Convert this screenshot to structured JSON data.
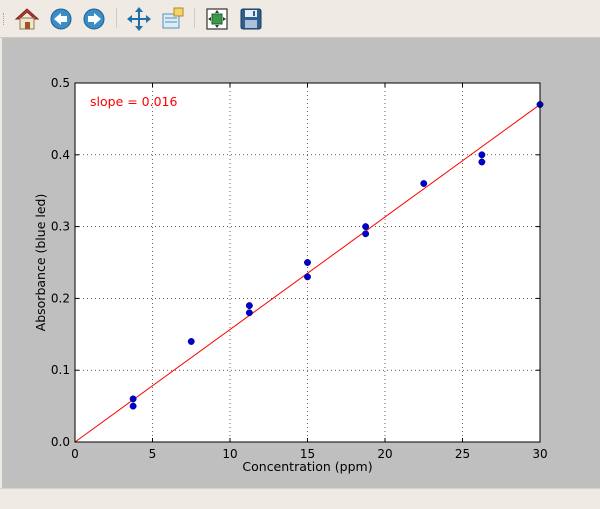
{
  "toolbar": {
    "buttons": [
      {
        "name": "home-button",
        "icon": "home-icon"
      },
      {
        "name": "back-button",
        "icon": "arrow-left-icon"
      },
      {
        "name": "forward-button",
        "icon": "arrow-right-icon"
      },
      {
        "name": "pan-button",
        "icon": "move-arrows-icon"
      },
      {
        "name": "zoom-button",
        "icon": "zoom-rect-icon"
      },
      {
        "name": "subplots-button",
        "icon": "configure-subplots-icon"
      },
      {
        "name": "save-button",
        "icon": "floppy-disk-icon"
      }
    ]
  },
  "chart_data": {
    "type": "scatter",
    "xlabel": "Concentration (ppm)",
    "ylabel": "Absorbance (blue led)",
    "xlim": [
      0,
      30
    ],
    "ylim": [
      0,
      0.5
    ],
    "xticks": [
      "0",
      "5",
      "10",
      "15",
      "20",
      "25",
      "30"
    ],
    "yticks": [
      "0.0",
      "0.1",
      "0.2",
      "0.3",
      "0.4",
      "0.5"
    ],
    "grid": true,
    "annotation": "slope = 0.016",
    "points": [
      {
        "x": 3.75,
        "y": 0.06
      },
      {
        "x": 3.75,
        "y": 0.05
      },
      {
        "x": 7.5,
        "y": 0.14
      },
      {
        "x": 11.25,
        "y": 0.19
      },
      {
        "x": 11.25,
        "y": 0.18
      },
      {
        "x": 15,
        "y": 0.25
      },
      {
        "x": 15,
        "y": 0.23
      },
      {
        "x": 18.75,
        "y": 0.3
      },
      {
        "x": 18.75,
        "y": 0.29
      },
      {
        "x": 22.5,
        "y": 0.36
      },
      {
        "x": 26.25,
        "y": 0.4
      },
      {
        "x": 26.25,
        "y": 0.39
      },
      {
        "x": 30,
        "y": 0.47
      }
    ],
    "fit_line": {
      "x": [
        0,
        30
      ],
      "y": [
        0,
        0.47
      ]
    },
    "colors": {
      "points": "#0000cc",
      "fit": "#ff0000",
      "annotation": "#ff0000",
      "axes_bg": "#ffffff",
      "figure_bg": "#bfbfbf"
    }
  }
}
